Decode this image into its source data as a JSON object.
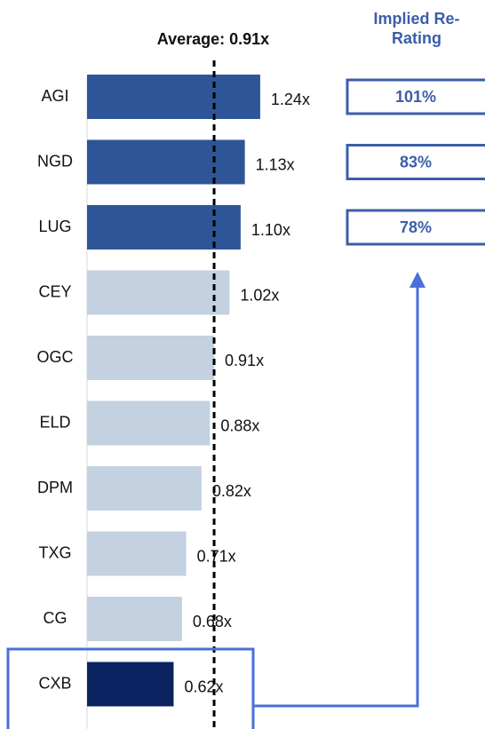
{
  "chart_data": {
    "type": "bar",
    "orientation": "horizontal",
    "categories": [
      "AGI",
      "NGD",
      "LUG",
      "CEY",
      "OGC",
      "ELD",
      "DPM",
      "TXG",
      "CG",
      "CXB"
    ],
    "values": [
      1.24,
      1.13,
      1.1,
      1.02,
      0.91,
      0.88,
      0.82,
      0.71,
      0.68,
      0.62
    ],
    "value_labels": [
      "1.24x",
      "1.13x",
      "1.10x",
      "1.02x",
      "0.91x",
      "0.88x",
      "0.82x",
      "0.71x",
      "0.68x",
      "0.62x"
    ],
    "colors": [
      "#2e5597",
      "#2e5597",
      "#2e5597",
      "#c3d1e0",
      "#c3d1e0",
      "#c3d1e0",
      "#c3d1e0",
      "#c3d1e0",
      "#c3d1e0",
      "#0b2461"
    ],
    "xlim": [
      0,
      2.85
    ],
    "average": {
      "value": 0.91,
      "label": "Average: 0.91x"
    },
    "rerating": {
      "title": "Implied Re-Rating",
      "values": [
        101,
        83,
        78
      ],
      "value_labels": [
        "101%",
        "83%",
        "78%"
      ]
    }
  }
}
